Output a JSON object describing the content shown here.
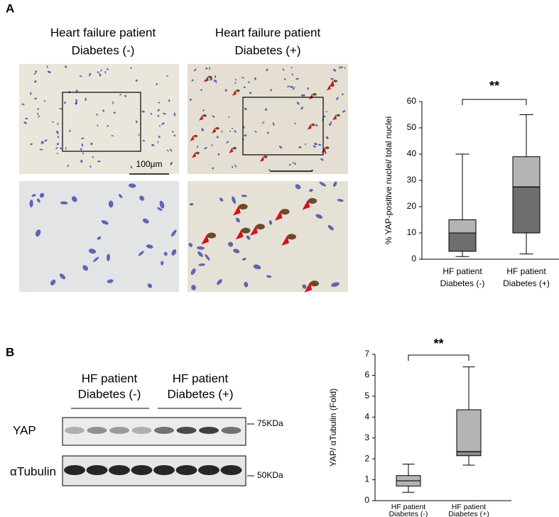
{
  "panel_labels": [
    "A",
    "B"
  ],
  "images": {
    "titles": [
      [
        "Heart failure patient",
        "Diabetes (-)"
      ],
      [
        "Heart failure patient",
        "Diabetes (+)"
      ]
    ],
    "scale_bar": "100µm"
  },
  "blot": {
    "groups": [
      [
        "HF patient",
        "Diabetes (-)"
      ],
      [
        "HF patient",
        "Diabetes (+)"
      ]
    ],
    "rows": [
      "YAP",
      "αTubulin"
    ],
    "markers": [
      "75KDa",
      "50KDa"
    ]
  },
  "chart_data": [
    {
      "type": "box",
      "y_label": "% YAP-positive nuclei/ total nuclei",
      "categories": [
        [
          "HF patient",
          "Diabetes (-)"
        ],
        [
          "HF patient",
          "Diabetes (+)"
        ]
      ],
      "boxes": [
        {
          "whislo": 1,
          "q1": 3,
          "med": 10,
          "q3": 15,
          "whishi": 40
        },
        {
          "whislo": 2,
          "q1": 10,
          "med": 27.5,
          "q3": 39,
          "whishi": 55
        }
      ],
      "colors": [
        [
          "#6e6e6e",
          "#b4b4b4"
        ],
        [
          "#6e6e6e",
          "#b4b4b4"
        ]
      ],
      "ylim": [
        0,
        60
      ],
      "yticks": [
        0,
        10,
        20,
        30,
        40,
        50,
        60
      ],
      "annotation": "**"
    },
    {
      "type": "box",
      "y_label": "YAP/ αTubulin (Fold)",
      "categories": [
        [
          "HF patient",
          "Diabetes (-)"
        ],
        [
          "HF patient",
          "Diabetes (+)"
        ]
      ],
      "boxes": [
        {
          "whislo": 0.4,
          "q1": 0.7,
          "med": 0.95,
          "q3": 1.2,
          "whishi": 1.75
        },
        {
          "whislo": 1.7,
          "q1": 2.15,
          "med": 2.35,
          "q3": 4.35,
          "whishi": 6.4
        }
      ],
      "colors": [
        [
          "#b4b4b4",
          "#b4b4b4"
        ],
        [
          "#8a8a8a",
          "#b4b4b4"
        ]
      ],
      "ylim": [
        0,
        7
      ],
      "yticks": [
        0,
        1,
        2,
        3,
        4,
        5,
        6,
        7
      ],
      "annotation": "**"
    }
  ]
}
